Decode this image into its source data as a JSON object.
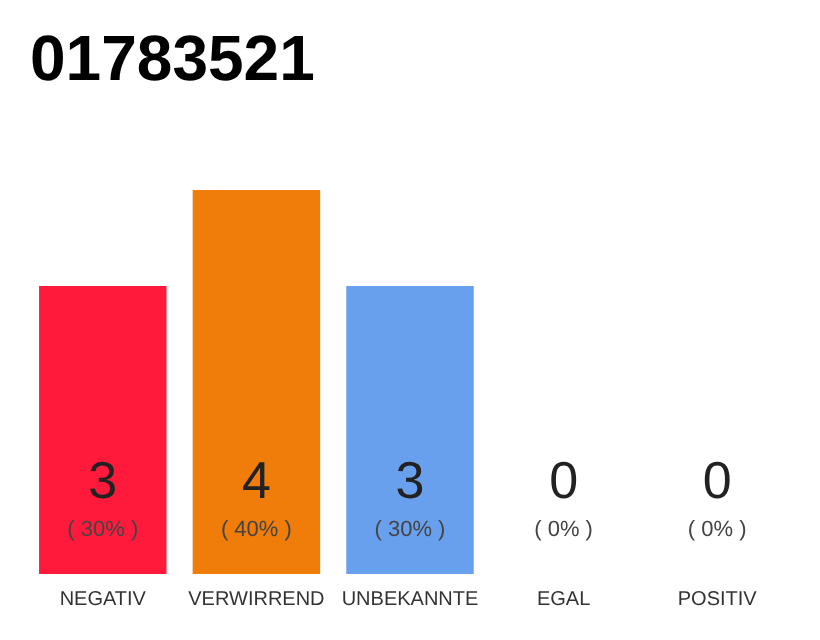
{
  "chart_data": {
    "type": "bar",
    "title": "01783521",
    "categories": [
      "NEGATIV",
      "VERWIRREND",
      "UNBEKANNTE",
      "EGAL",
      "POSITIV"
    ],
    "values": [
      3,
      4,
      3,
      0,
      0
    ],
    "colors": [
      "#ff1a3c",
      "#f07c0a",
      "#68a0ee",
      "#7cc46a",
      "#22a84a"
    ],
    "value_labels": [
      "3\n( 30% )",
      "4\n( 40% )",
      "3\n( 30% )",
      "0\n( 0% )",
      "0\n( 0% )"
    ],
    "ylim": [
      0,
      4
    ],
    "tick_labels": "x"
  }
}
